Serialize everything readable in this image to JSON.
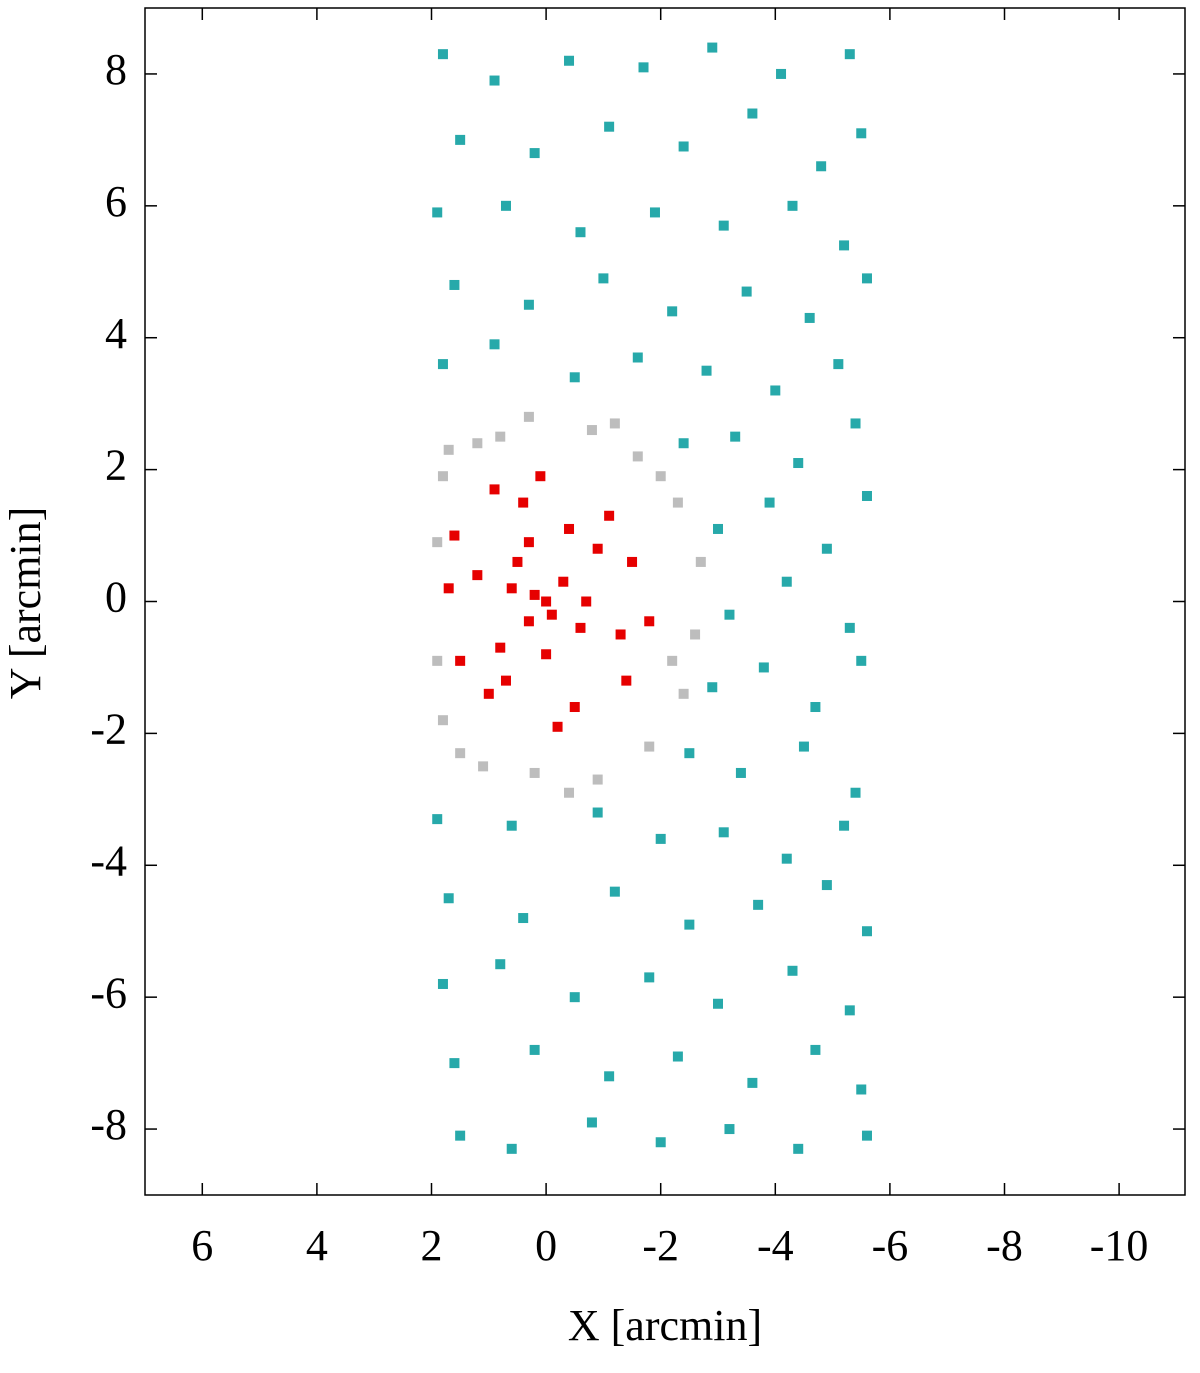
{
  "chart_data": {
    "type": "scatter",
    "x_label": "X [arcmin]",
    "y_label": "Y [arcmin]",
    "xlim": [
      7,
      -11.15
    ],
    "ylim": [
      -9,
      9
    ],
    "xticks": [
      6,
      4,
      2,
      0,
      -2,
      -4,
      -6,
      -8,
      -10
    ],
    "yticks": [
      8,
      6,
      4,
      2,
      0,
      -2,
      -4,
      -6,
      -8
    ],
    "series": [
      {
        "color": "#27a9aa",
        "x": [
          1.8,
          0.9,
          -0.4,
          -1.7,
          -2.9,
          -4.1,
          -5.3,
          1.5,
          0.2,
          -1.1,
          -2.4,
          -3.6,
          -4.8,
          -5.5,
          1.9,
          0.7,
          -0.6,
          -1.9,
          -3.1,
          -4.3,
          -5.2,
          1.6,
          0.3,
          -1.0,
          -2.2,
          -3.5,
          -4.6,
          -5.6,
          1.8,
          0.9,
          -0.5,
          -1.6,
          -2.8,
          -4.0,
          -5.1,
          -2.4,
          -3.3,
          -4.4,
          -5.4,
          -3.0,
          -3.9,
          -4.9,
          -5.6,
          -3.2,
          -4.2,
          -5.3,
          -2.9,
          -3.8,
          -4.7,
          -5.5,
          -2.5,
          -3.4,
          -4.5,
          -5.4,
          1.9,
          0.6,
          -0.9,
          -2.0,
          -3.1,
          -4.2,
          -5.2,
          1.7,
          0.4,
          -1.2,
          -2.5,
          -3.7,
          -4.9,
          -5.6,
          1.8,
          0.8,
          -0.5,
          -1.8,
          -3.0,
          -4.3,
          -5.3,
          1.6,
          0.2,
          -1.1,
          -2.3,
          -3.6,
          -4.7,
          -5.5,
          1.5,
          0.6,
          -0.8,
          -2.0,
          -3.2,
          -4.4,
          -5.6
        ],
        "values": [
          8.3,
          7.9,
          8.2,
          8.1,
          8.4,
          8.0,
          8.3,
          7.0,
          6.8,
          7.2,
          6.9,
          7.4,
          6.6,
          7.1,
          5.9,
          6.0,
          5.6,
          5.9,
          5.7,
          6.0,
          5.4,
          4.8,
          4.5,
          4.9,
          4.4,
          4.7,
          4.3,
          4.9,
          3.6,
          3.9,
          3.4,
          3.7,
          3.5,
          3.2,
          3.6,
          2.4,
          2.5,
          2.1,
          2.7,
          1.1,
          1.5,
          0.8,
          1.6,
          -0.2,
          0.3,
          -0.4,
          -1.3,
          -1.0,
          -1.6,
          -0.9,
          -2.3,
          -2.6,
          -2.2,
          -2.9,
          -3.3,
          -3.4,
          -3.2,
          -3.6,
          -3.5,
          -3.9,
          -3.4,
          -4.5,
          -4.8,
          -4.4,
          -4.9,
          -4.6,
          -4.3,
          -5.0,
          -5.8,
          -5.5,
          -6.0,
          -5.7,
          -6.1,
          -5.6,
          -6.2,
          -7.0,
          -6.8,
          -7.2,
          -6.9,
          -7.3,
          -6.8,
          -7.4,
          -8.1,
          -8.3,
          -7.9,
          -8.2,
          -8.0,
          -8.3,
          -8.1
        ]
      },
      {
        "color": "#bdbdbd",
        "x": [
          1.8,
          1.2,
          0.3,
          -0.8,
          -1.6,
          -2.3,
          -2.7,
          -2.6,
          -2.4,
          -1.8,
          -0.9,
          0.2,
          1.1,
          1.8,
          1.9,
          1.9,
          1.5,
          -1.2,
          0.8,
          -2.0,
          -2.2,
          -0.4,
          1.7
        ],
        "values": [
          1.9,
          2.4,
          2.8,
          2.6,
          2.2,
          1.5,
          0.6,
          -0.5,
          -1.4,
          -2.2,
          -2.7,
          -2.6,
          -2.5,
          -1.8,
          -0.9,
          0.9,
          -2.3,
          2.7,
          2.5,
          1.9,
          -0.9,
          -2.9,
          2.3
        ]
      },
      {
        "color": "#e60000",
        "x": [
          0,
          0.2,
          -0.1,
          0.3,
          -0.3,
          0.5,
          -0.6,
          0.8,
          -0.9,
          1.2,
          -1.3,
          1.5,
          -1.5,
          0.4,
          -0.5,
          0.1,
          -0.2,
          1.7,
          -1.8,
          1.0,
          -1.1,
          0.7,
          -0.4,
          1.6,
          0.9,
          -1.4,
          0.6,
          -0.7,
          0.0,
          0.3
        ],
        "values": [
          0,
          0.1,
          -0.2,
          -0.3,
          0.3,
          0.6,
          -0.4,
          -0.7,
          0.8,
          0.4,
          -0.5,
          -0.9,
          0.6,
          1.5,
          -1.6,
          1.9,
          -1.9,
          0.2,
          -0.3,
          -1.4,
          1.3,
          -1.2,
          1.1,
          1.0,
          1.7,
          -1.2,
          0.2,
          0.0,
          -0.8,
          0.9
        ]
      }
    ]
  }
}
